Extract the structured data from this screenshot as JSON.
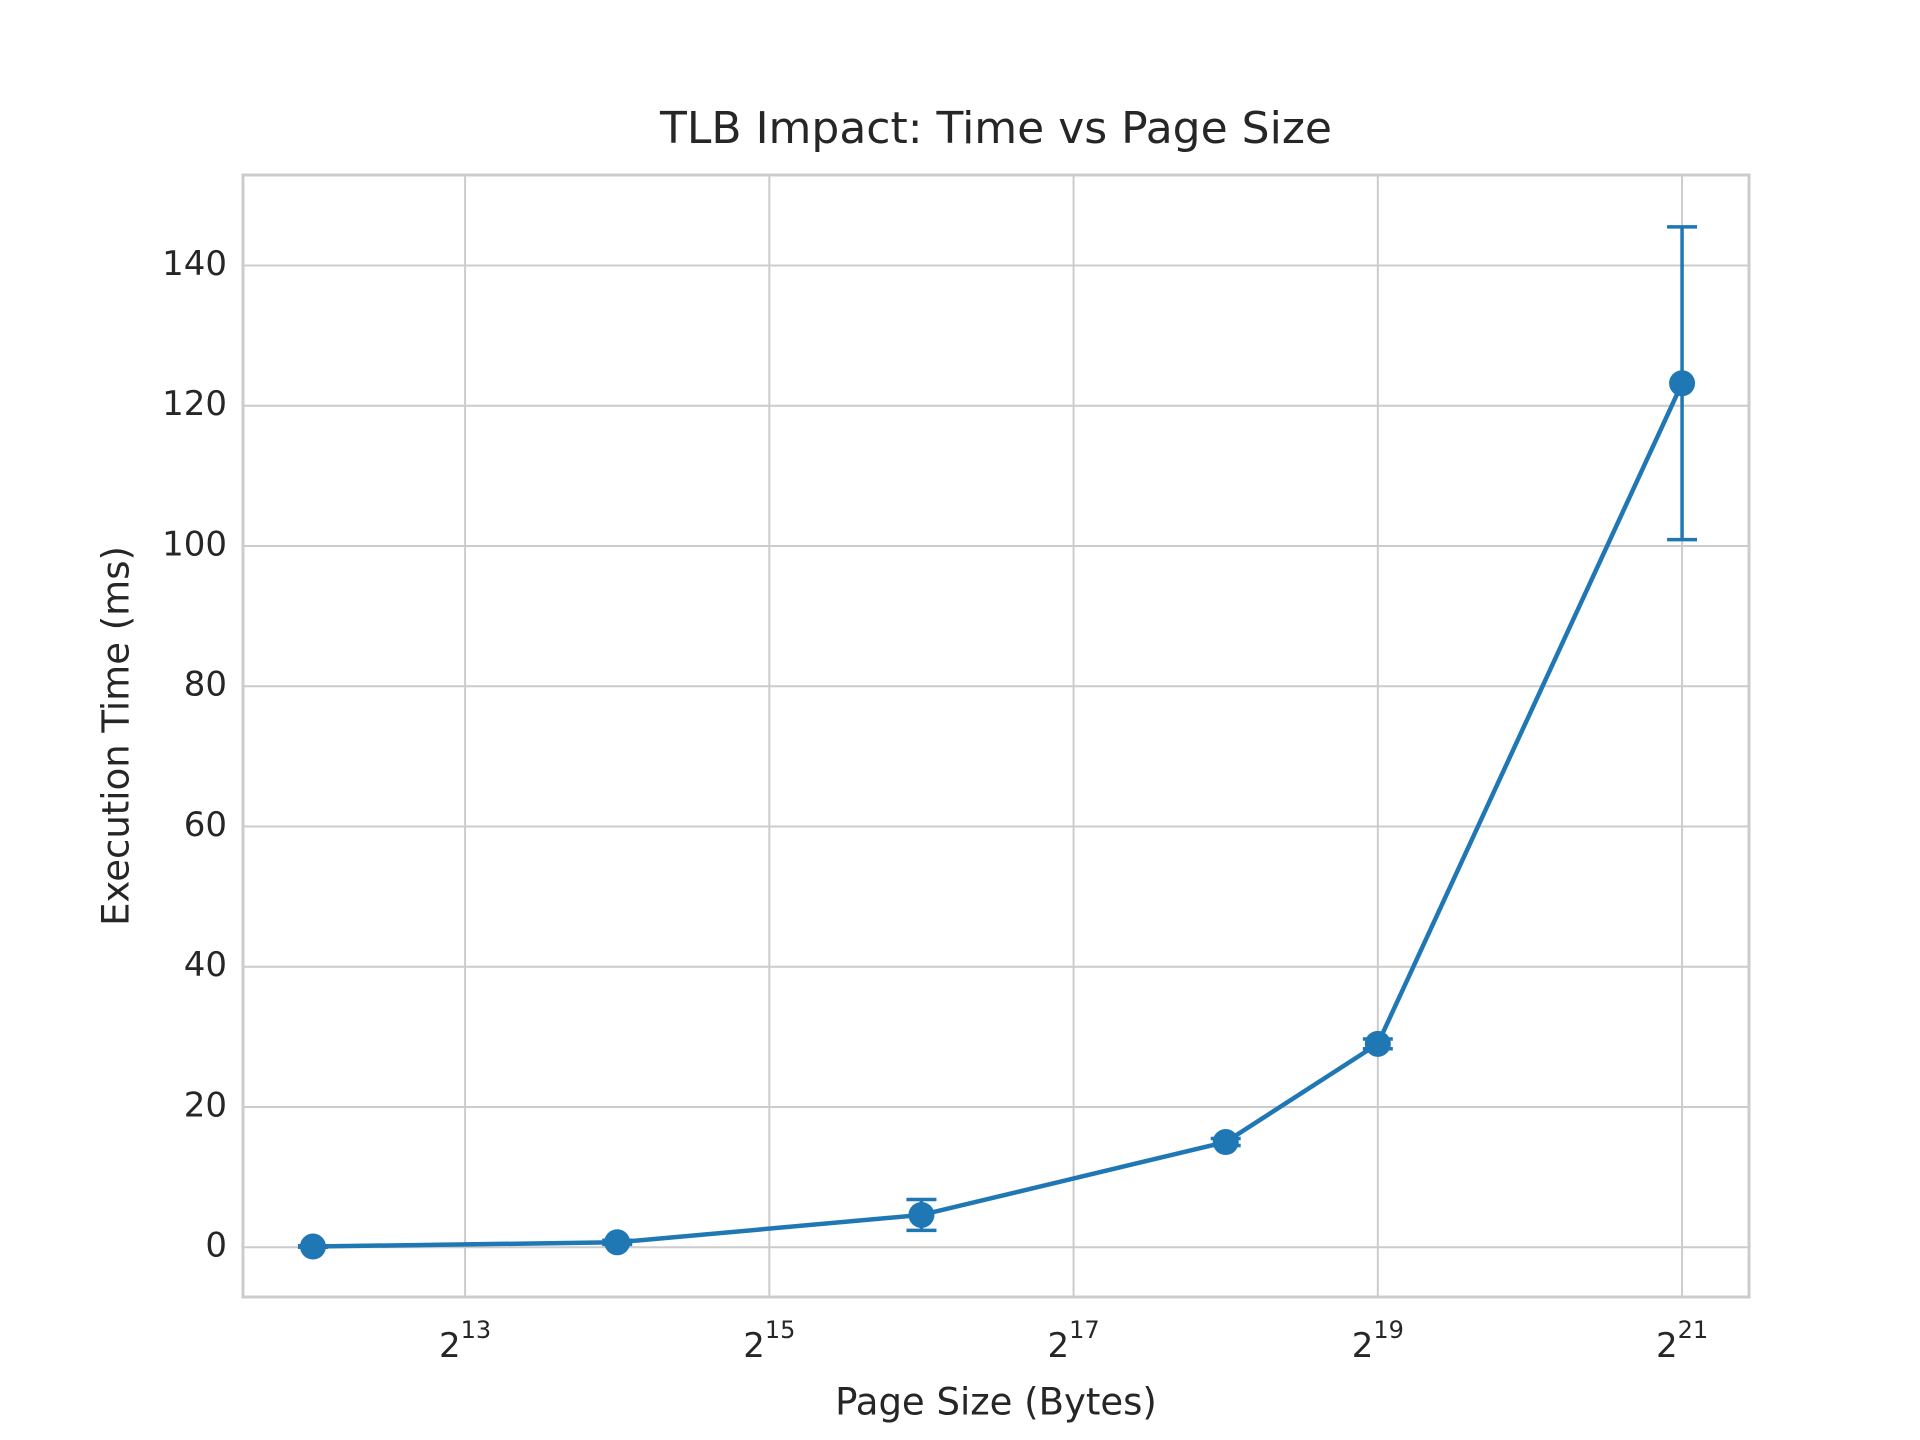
{
  "chart_data": {
    "type": "line",
    "title": "TLB Impact: Time vs Page Size",
    "xlabel": "Page Size (Bytes)",
    "ylabel": "Execution Time (ms)",
    "x": [
      4096,
      16384,
      65536,
      262144,
      524288,
      2097152
    ],
    "series": [
      {
        "color": "#1f77b4",
        "values": [
          0.1,
          0.7,
          4.6,
          15.0,
          29.0,
          123.2
        ],
        "errors": [
          0.1,
          0.3,
          2.2,
          0.5,
          0.7,
          22.3
        ]
      }
    ],
    "xscale": "log2",
    "xlim": [
      2978,
      2845000
    ],
    "xticks": [
      {
        "value": 8192,
        "label": "2^13"
      },
      {
        "value": 32768,
        "label": "2^15"
      },
      {
        "value": 131072,
        "label": "2^17"
      },
      {
        "value": 524288,
        "label": "2^19"
      },
      {
        "value": 2097152,
        "label": "2^21"
      }
    ],
    "ylim": [
      -7.1,
      152.9
    ],
    "yticks": [
      0,
      20,
      40,
      60,
      80,
      100,
      120,
      140
    ],
    "grid": true
  }
}
